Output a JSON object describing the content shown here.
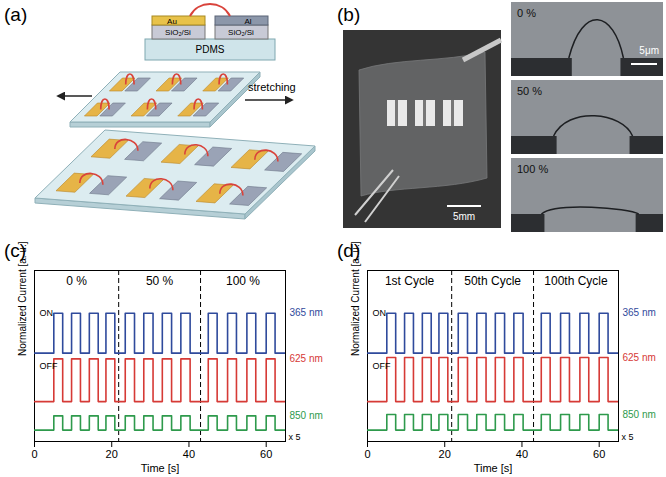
{
  "figure": {
    "panel_a": {
      "label": "(a)",
      "left_metal": "Au",
      "right_metal": "Al",
      "substrate": "SiO₂/Si",
      "base": "PDMS",
      "arrow_label": "stretching"
    },
    "panel_b": {
      "label": "(b)",
      "photo_scale": "5mm",
      "micrograph_scale": "5μm",
      "micrograph_labels": [
        "0 %",
        "50 %",
        "100 %"
      ]
    }
  },
  "chart_data": [
    {
      "type": "line",
      "title": "(c)",
      "xlabel": "Time [s]",
      "ylabel": "Normalized Current [a. u.]",
      "xlim": [
        0,
        65
      ],
      "xticks": [
        0,
        20,
        40,
        60
      ],
      "ylim": [
        0,
        12
      ],
      "grid": false,
      "tick_labels": "x",
      "regions": {
        "labels": [
          "0 %",
          "50 %",
          "100 %"
        ],
        "dividers": [
          21.8,
          43
        ]
      },
      "annotations": [
        {
          "text": "ON",
          "x": 0.5,
          "y": 9
        },
        {
          "text": "OFF",
          "x": 0.5,
          "y": 5.3
        },
        {
          "text": "x 5",
          "x": 65,
          "y": 0.3
        }
      ],
      "x": [
        0,
        5,
        5,
        7.3,
        7.3,
        9.6,
        9.6,
        11.9,
        11.9,
        14.2,
        14.2,
        16.5,
        16.5,
        18.5,
        18.5,
        20.8,
        20.8,
        23.5,
        23.5,
        25.9,
        25.9,
        28.3,
        28.3,
        30.7,
        30.7,
        33.1,
        33.1,
        35.5,
        35.5,
        37.9,
        37.9,
        40.3,
        40.3,
        45,
        45,
        47.3,
        47.3,
        50,
        50,
        52.3,
        52.3,
        55,
        55,
        57.3,
        57.3,
        60,
        60,
        62.3,
        62.3,
        65
      ],
      "series": [
        {
          "name": "365 nm",
          "color": "#2f4a9c",
          "values": [
            6.2,
            6.2,
            9,
            9,
            6.2,
            6.2,
            9,
            9,
            6.2,
            6.2,
            9,
            9,
            6.2,
            6.2,
            9,
            9,
            6.2,
            6.2,
            9,
            9,
            6.2,
            6.2,
            9,
            9,
            6.2,
            6.2,
            9,
            9,
            6.2,
            6.2,
            9,
            9,
            6.2,
            6.2,
            9,
            9,
            6.2,
            6.2,
            9,
            9,
            6.2,
            6.2,
            9,
            9,
            6.2,
            6.2,
            9,
            9,
            6.2,
            6.2
          ]
        },
        {
          "name": "625 nm",
          "color": "#d63a36",
          "values": [
            2.8,
            2.8,
            5.8,
            5.8,
            2.8,
            2.8,
            5.8,
            5.8,
            2.8,
            2.8,
            5.8,
            5.8,
            2.8,
            2.8,
            5.8,
            5.8,
            2.8,
            2.8,
            5.8,
            5.8,
            2.8,
            2.8,
            5.8,
            5.8,
            2.8,
            2.8,
            5.8,
            5.8,
            2.8,
            2.8,
            5.8,
            5.8,
            2.8,
            2.8,
            5.8,
            5.8,
            2.8,
            2.8,
            5.8,
            5.8,
            2.8,
            2.8,
            5.8,
            5.8,
            2.8,
            2.8,
            5.8,
            5.8,
            2.8,
            2.8
          ]
        },
        {
          "name": "850 nm",
          "color": "#2e9a4c",
          "values": [
            0.8,
            0.8,
            1.8,
            1.8,
            0.8,
            0.8,
            1.8,
            1.8,
            0.8,
            0.8,
            1.8,
            1.8,
            0.8,
            0.8,
            1.8,
            1.8,
            0.8,
            0.8,
            1.8,
            1.8,
            0.8,
            0.8,
            1.8,
            1.8,
            0.8,
            0.8,
            1.8,
            1.8,
            0.8,
            0.8,
            1.8,
            1.8,
            0.8,
            0.8,
            1.8,
            1.8,
            0.8,
            0.8,
            1.8,
            1.8,
            0.8,
            0.8,
            1.8,
            1.8,
            0.8,
            0.8,
            1.8,
            1.8,
            0.8,
            0.8
          ]
        }
      ]
    },
    {
      "type": "line",
      "title": "(d)",
      "xlabel": "Time [s]",
      "ylabel": "Normalized Current [a. u.]",
      "xlim": [
        0,
        65
      ],
      "xticks": [
        0,
        20,
        40,
        60
      ],
      "ylim": [
        0,
        12
      ],
      "grid": false,
      "tick_labels": "x",
      "regions": {
        "labels": [
          "1st Cycle",
          "50th Cycle",
          "100th Cycle"
        ],
        "dividers": [
          21.8,
          43
        ]
      },
      "annotations": [
        {
          "text": "ON",
          "x": 0.5,
          "y": 9
        },
        {
          "text": "OFF",
          "x": 0.5,
          "y": 5.3
        },
        {
          "text": "x 5",
          "x": 65,
          "y": 0.3
        }
      ],
      "x": [
        0,
        5,
        5,
        7.3,
        7.3,
        9.6,
        9.6,
        11.9,
        11.9,
        14.2,
        14.2,
        16.5,
        16.5,
        18.5,
        18.5,
        20.8,
        20.8,
        23.5,
        23.5,
        25.9,
        25.9,
        28.3,
        28.3,
        30.7,
        30.7,
        33.1,
        33.1,
        35.5,
        35.5,
        37.9,
        37.9,
        40.3,
        40.3,
        45,
        45,
        47.3,
        47.3,
        50,
        50,
        52.3,
        52.3,
        55,
        55,
        57.3,
        57.3,
        60,
        60,
        62.3,
        62.3,
        65
      ],
      "series": [
        {
          "name": "365 nm",
          "color": "#2f4a9c",
          "values": [
            6.2,
            6.2,
            9,
            9,
            6.2,
            6.2,
            9,
            9,
            6.2,
            6.2,
            9,
            9,
            6.2,
            6.2,
            9,
            9,
            6.2,
            6.2,
            9,
            9,
            6.2,
            6.2,
            9,
            9,
            6.2,
            6.2,
            9,
            9,
            6.2,
            6.2,
            9,
            9,
            6.2,
            6.2,
            9,
            9,
            6.2,
            6.2,
            9,
            9,
            6.2,
            6.2,
            9,
            9,
            6.2,
            6.2,
            9,
            9,
            6.2,
            6.2
          ]
        },
        {
          "name": "625 nm",
          "color": "#d63a36",
          "values": [
            2.8,
            2.8,
            5.9,
            5.9,
            2.8,
            2.8,
            5.9,
            5.9,
            2.8,
            2.8,
            5.9,
            5.9,
            2.8,
            2.8,
            5.9,
            5.9,
            2.8,
            2.8,
            5.9,
            5.9,
            2.8,
            2.8,
            5.9,
            5.9,
            2.8,
            2.8,
            5.9,
            5.9,
            2.8,
            2.8,
            5.9,
            5.9,
            2.8,
            2.8,
            5.9,
            5.9,
            2.8,
            2.8,
            5.9,
            5.9,
            2.8,
            2.8,
            5.9,
            5.9,
            2.8,
            2.8,
            5.9,
            5.9,
            2.8,
            2.8
          ]
        },
        {
          "name": "850 nm",
          "color": "#2e9a4c",
          "values": [
            0.8,
            0.8,
            1.9,
            1.9,
            0.8,
            0.8,
            1.9,
            1.9,
            0.8,
            0.8,
            1.9,
            1.9,
            0.8,
            0.8,
            1.9,
            1.9,
            0.8,
            0.8,
            1.9,
            1.9,
            0.8,
            0.8,
            1.9,
            1.9,
            0.8,
            0.8,
            1.9,
            1.9,
            0.8,
            0.8,
            1.9,
            1.9,
            0.8,
            0.8,
            1.9,
            1.9,
            0.8,
            0.8,
            1.9,
            1.9,
            0.8,
            0.8,
            1.9,
            1.9,
            0.8,
            0.8,
            1.9,
            1.9,
            0.8,
            0.8
          ]
        }
      ]
    }
  ]
}
